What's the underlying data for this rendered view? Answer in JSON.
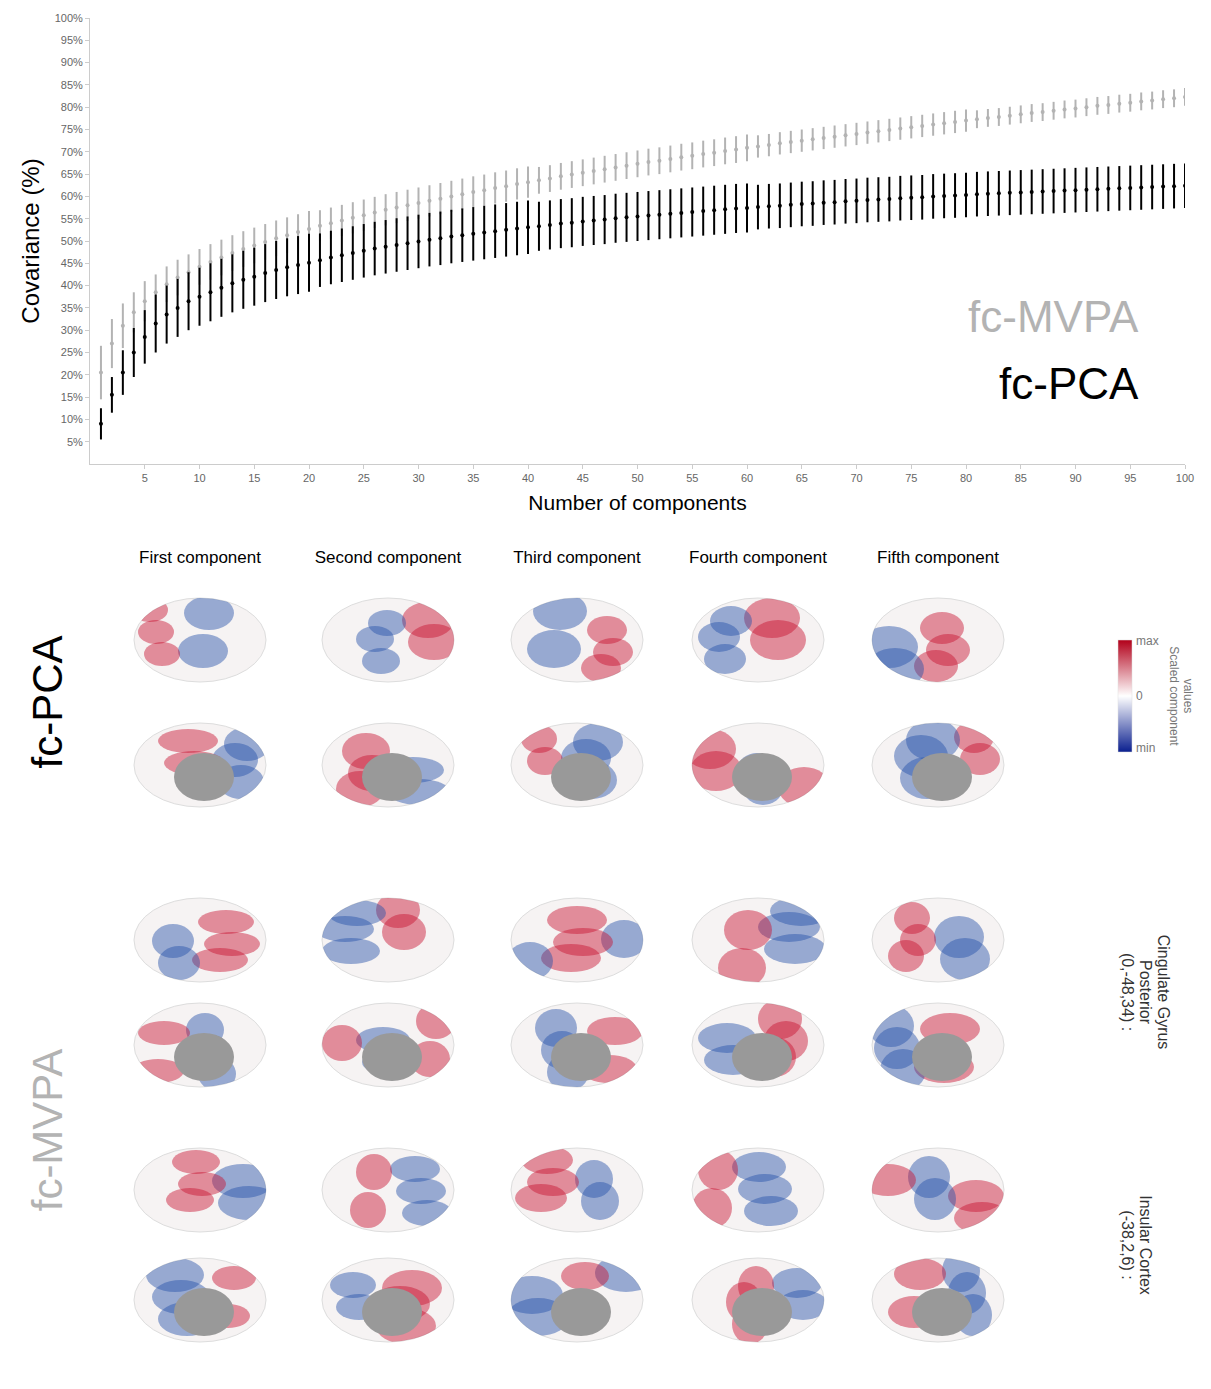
{
  "chart_data": {
    "type": "scatter",
    "x_label": "Number of components",
    "y_label": "Covariance (%)",
    "x": [
      1,
      2,
      3,
      4,
      5,
      6,
      7,
      8,
      9,
      10,
      11,
      12,
      13,
      14,
      15,
      16,
      17,
      18,
      19,
      20,
      21,
      22,
      23,
      24,
      25,
      26,
      27,
      28,
      29,
      30,
      31,
      32,
      33,
      34,
      35,
      36,
      37,
      38,
      39,
      40,
      41,
      42,
      43,
      44,
      45,
      46,
      47,
      48,
      49,
      50,
      51,
      52,
      53,
      54,
      55,
      56,
      57,
      58,
      59,
      60,
      61,
      62,
      63,
      64,
      65,
      66,
      67,
      68,
      69,
      70,
      71,
      72,
      73,
      74,
      75,
      76,
      77,
      78,
      79,
      80,
      81,
      82,
      83,
      84,
      85,
      86,
      87,
      88,
      89,
      90,
      91,
      92,
      93,
      94,
      95,
      96,
      97,
      98,
      99,
      100
    ],
    "series": [
      {
        "name": "fc-MVPA",
        "color": "#b3b3b3",
        "marker": "circle",
        "values": [
          20.5,
          27,
          31,
          34,
          36.5,
          38.5,
          40.3,
          41.8,
          43,
          44.2,
          45.3,
          46.3,
          47.3,
          48.2,
          49,
          49.8,
          50.6,
          51.3,
          52,
          52.7,
          53.4,
          54,
          54.6,
          55.2,
          55.8,
          56.4,
          57,
          57.5,
          58,
          58.5,
          59,
          59.5,
          60,
          60.5,
          61,
          61.4,
          61.9,
          62.3,
          62.8,
          63.2,
          63.6,
          64,
          64.5,
          64.9,
          65.3,
          65.7,
          66.1,
          66.5,
          66.9,
          67.3,
          67.7,
          68,
          68.4,
          68.8,
          69.1,
          69.5,
          69.8,
          70.2,
          70.5,
          70.9,
          71.2,
          71.5,
          71.9,
          72.2,
          72.5,
          72.8,
          73.1,
          73.4,
          73.7,
          74,
          74.3,
          74.6,
          74.9,
          75.2,
          75.5,
          75.8,
          76.1,
          76.4,
          76.7,
          77,
          77.3,
          77.6,
          77.8,
          78.1,
          78.4,
          78.7,
          78.9,
          79.2,
          79.5,
          79.7,
          80,
          80.3,
          80.5,
          80.8,
          81,
          81.3,
          81.5,
          81.8,
          82,
          82.3
        ],
        "error": [
          6,
          5.5,
          5,
          4.5,
          4.5,
          4,
          4,
          4,
          4,
          4,
          4,
          4,
          4,
          4,
          4,
          4,
          4,
          4,
          4,
          4,
          3.5,
          3.5,
          3.5,
          3.5,
          3.5,
          3.5,
          3.5,
          3.5,
          3.5,
          3.5,
          3.5,
          3.5,
          3.5,
          3.5,
          3.5,
          3.5,
          3.5,
          3.5,
          3.5,
          3.5,
          3,
          3,
          3,
          3,
          3,
          3,
          3,
          3,
          3,
          3,
          3,
          3,
          3,
          3,
          3,
          3,
          3,
          3,
          3,
          3,
          2.5,
          2.5,
          2.5,
          2.5,
          2.5,
          2.5,
          2.5,
          2.5,
          2.5,
          2.5,
          2.5,
          2.5,
          2.5,
          2.5,
          2.5,
          2.5,
          2.5,
          2.5,
          2.5,
          2.5,
          2,
          2,
          2,
          2,
          2,
          2,
          2,
          2,
          2,
          2,
          2,
          2,
          2,
          2,
          2,
          2,
          2,
          2,
          2,
          2
        ]
      },
      {
        "name": "fc-PCA",
        "color": "#000000",
        "marker": "circle",
        "values": [
          9,
          15.5,
          20.5,
          25,
          28.5,
          31.5,
          33.5,
          35,
          36.5,
          37.5,
          38.5,
          39.5,
          40.5,
          41.3,
          42,
          42.8,
          43.5,
          44.1,
          44.6,
          45.1,
          45.7,
          46.3,
          46.8,
          47.3,
          47.8,
          48.3,
          48.7,
          49.1,
          49.5,
          49.9,
          50.3,
          50.6,
          51,
          51.3,
          51.6,
          51.9,
          52.2,
          52.5,
          52.8,
          53.1,
          53.3,
          53.6,
          53.9,
          54.1,
          54.4,
          54.6,
          54.8,
          55.1,
          55.3,
          55.5,
          55.7,
          55.9,
          56.1,
          56.3,
          56.5,
          56.7,
          56.9,
          57.1,
          57.3,
          57.4,
          57.6,
          57.8,
          57.9,
          58.1,
          58.3,
          58.4,
          58.6,
          58.7,
          58.9,
          59,
          59.2,
          59.3,
          59.4,
          59.6,
          59.7,
          59.8,
          60,
          60.1,
          60.2,
          60.3,
          60.5,
          60.6,
          60.7,
          60.8,
          60.9,
          61,
          61.1,
          61.2,
          61.3,
          61.4,
          61.5,
          61.6,
          61.7,
          61.8,
          61.9,
          62,
          62.1,
          62.2,
          62.3,
          62.4
        ],
        "error": [
          3.5,
          4,
          5,
          5.5,
          6,
          6.5,
          6.5,
          6.5,
          6.5,
          6.5,
          6.5,
          6.5,
          6.5,
          6.5,
          6.5,
          6.5,
          6.5,
          6.5,
          6.5,
          6.5,
          6,
          6,
          6,
          6,
          6,
          6,
          6,
          6,
          6,
          6,
          6,
          6,
          6,
          6,
          6,
          6,
          6,
          6,
          6,
          6,
          5.5,
          5.5,
          5.5,
          5.5,
          5.5,
          5.5,
          5.5,
          5.5,
          5.5,
          5.5,
          5.5,
          5.5,
          5.5,
          5.5,
          5.5,
          5.5,
          5.5,
          5.5,
          5.5,
          5.5,
          5,
          5,
          5,
          5,
          5,
          5,
          5,
          5,
          5,
          5,
          5,
          5,
          5,
          5,
          5,
          5,
          5,
          5,
          5,
          5,
          5,
          5,
          5,
          5,
          5,
          5,
          5,
          5,
          5,
          5,
          5,
          5,
          5,
          5,
          5,
          5,
          5,
          5,
          5,
          5
        ]
      }
    ],
    "xlim": [
      0,
      100
    ],
    "xticks": [
      5,
      10,
      15,
      20,
      25,
      30,
      35,
      40,
      45,
      50,
      55,
      60,
      65,
      70,
      75,
      80,
      85,
      90,
      95,
      100
    ],
    "ylim": [
      0,
      100
    ],
    "yticks": [
      {
        "value": 5,
        "label": "5%"
      },
      {
        "value": 10,
        "label": "10%"
      },
      {
        "value": 15,
        "label": "15%"
      },
      {
        "value": 20,
        "label": "20%"
      },
      {
        "value": 25,
        "label": "25%"
      },
      {
        "value": 30,
        "label": "30%"
      },
      {
        "value": 35,
        "label": "35%"
      },
      {
        "value": 40,
        "label": "40%"
      },
      {
        "value": 45,
        "label": "45%"
      },
      {
        "value": 50,
        "label": "50%"
      },
      {
        "value": 55,
        "label": "55%"
      },
      {
        "value": 60,
        "label": "60%"
      },
      {
        "value": 65,
        "label": "65%"
      },
      {
        "value": 70,
        "label": "70%"
      },
      {
        "value": 75,
        "label": "75%"
      },
      {
        "value": 80,
        "label": "80%"
      },
      {
        "value": 85,
        "label": "85%"
      },
      {
        "value": 90,
        "label": "90%"
      },
      {
        "value": 95,
        "label": "95%"
      },
      {
        "value": 100,
        "label": "100%"
      }
    ],
    "grid": false
  },
  "brain_maps": {
    "columns": [
      "First component",
      "Second component",
      "Third component",
      "Fourth component",
      "Fifth component"
    ],
    "rows": [
      {
        "label": "fc-PCA",
        "color": "#000000",
        "seeds": [
          {
            "lines": []
          }
        ]
      },
      {
        "label": "fc-MVPA",
        "color": "#b3b3b3",
        "seeds": [
          {
            "lines": [
              "(0,-48,34) :",
              "Posterior",
              "Cingulate Gyrus"
            ]
          },
          {
            "lines": [
              "(-38,2,6) :",
              "Insular Cortex"
            ]
          }
        ]
      }
    ],
    "colorbar": {
      "title_lines": [
        "Scaled component",
        "values"
      ],
      "labels": [
        "max",
        "0",
        "min"
      ]
    }
  }
}
